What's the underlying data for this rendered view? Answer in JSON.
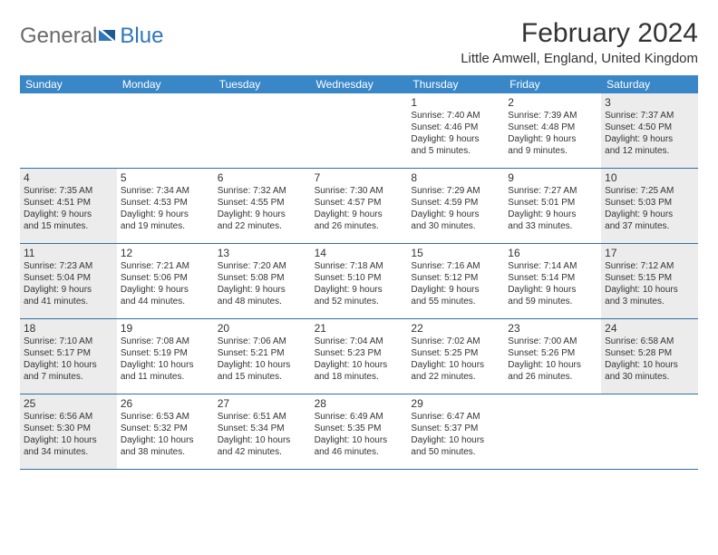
{
  "logo": {
    "part1": "General",
    "part2": "Blue"
  },
  "title": "February 2024",
  "location": "Little Amwell, England, United Kingdom",
  "colors": {
    "header_bg": "#3a87c8",
    "header_text": "#ffffff",
    "border": "#2f6fa8",
    "shaded_bg": "#ececec",
    "body_text": "#333333",
    "logo_gray": "#6a6a6a",
    "logo_blue": "#2f76ba"
  },
  "weekdays": [
    "Sunday",
    "Monday",
    "Tuesday",
    "Wednesday",
    "Thursday",
    "Friday",
    "Saturday"
  ],
  "weeks": [
    [
      null,
      null,
      null,
      null,
      {
        "n": "1",
        "sr": "Sunrise: 7:40 AM",
        "ss": "Sunset: 4:46 PM",
        "d1": "Daylight: 9 hours",
        "d2": "and 5 minutes."
      },
      {
        "n": "2",
        "sr": "Sunrise: 7:39 AM",
        "ss": "Sunset: 4:48 PM",
        "d1": "Daylight: 9 hours",
        "d2": "and 9 minutes."
      },
      {
        "n": "3",
        "sr": "Sunrise: 7:37 AM",
        "ss": "Sunset: 4:50 PM",
        "d1": "Daylight: 9 hours",
        "d2": "and 12 minutes."
      }
    ],
    [
      {
        "n": "4",
        "sr": "Sunrise: 7:35 AM",
        "ss": "Sunset: 4:51 PM",
        "d1": "Daylight: 9 hours",
        "d2": "and 15 minutes."
      },
      {
        "n": "5",
        "sr": "Sunrise: 7:34 AM",
        "ss": "Sunset: 4:53 PM",
        "d1": "Daylight: 9 hours",
        "d2": "and 19 minutes."
      },
      {
        "n": "6",
        "sr": "Sunrise: 7:32 AM",
        "ss": "Sunset: 4:55 PM",
        "d1": "Daylight: 9 hours",
        "d2": "and 22 minutes."
      },
      {
        "n": "7",
        "sr": "Sunrise: 7:30 AM",
        "ss": "Sunset: 4:57 PM",
        "d1": "Daylight: 9 hours",
        "d2": "and 26 minutes."
      },
      {
        "n": "8",
        "sr": "Sunrise: 7:29 AM",
        "ss": "Sunset: 4:59 PM",
        "d1": "Daylight: 9 hours",
        "d2": "and 30 minutes."
      },
      {
        "n": "9",
        "sr": "Sunrise: 7:27 AM",
        "ss": "Sunset: 5:01 PM",
        "d1": "Daylight: 9 hours",
        "d2": "and 33 minutes."
      },
      {
        "n": "10",
        "sr": "Sunrise: 7:25 AM",
        "ss": "Sunset: 5:03 PM",
        "d1": "Daylight: 9 hours",
        "d2": "and 37 minutes."
      }
    ],
    [
      {
        "n": "11",
        "sr": "Sunrise: 7:23 AM",
        "ss": "Sunset: 5:04 PM",
        "d1": "Daylight: 9 hours",
        "d2": "and 41 minutes."
      },
      {
        "n": "12",
        "sr": "Sunrise: 7:21 AM",
        "ss": "Sunset: 5:06 PM",
        "d1": "Daylight: 9 hours",
        "d2": "and 44 minutes."
      },
      {
        "n": "13",
        "sr": "Sunrise: 7:20 AM",
        "ss": "Sunset: 5:08 PM",
        "d1": "Daylight: 9 hours",
        "d2": "and 48 minutes."
      },
      {
        "n": "14",
        "sr": "Sunrise: 7:18 AM",
        "ss": "Sunset: 5:10 PM",
        "d1": "Daylight: 9 hours",
        "d2": "and 52 minutes."
      },
      {
        "n": "15",
        "sr": "Sunrise: 7:16 AM",
        "ss": "Sunset: 5:12 PM",
        "d1": "Daylight: 9 hours",
        "d2": "and 55 minutes."
      },
      {
        "n": "16",
        "sr": "Sunrise: 7:14 AM",
        "ss": "Sunset: 5:14 PM",
        "d1": "Daylight: 9 hours",
        "d2": "and 59 minutes."
      },
      {
        "n": "17",
        "sr": "Sunrise: 7:12 AM",
        "ss": "Sunset: 5:15 PM",
        "d1": "Daylight: 10 hours",
        "d2": "and 3 minutes."
      }
    ],
    [
      {
        "n": "18",
        "sr": "Sunrise: 7:10 AM",
        "ss": "Sunset: 5:17 PM",
        "d1": "Daylight: 10 hours",
        "d2": "and 7 minutes."
      },
      {
        "n": "19",
        "sr": "Sunrise: 7:08 AM",
        "ss": "Sunset: 5:19 PM",
        "d1": "Daylight: 10 hours",
        "d2": "and 11 minutes."
      },
      {
        "n": "20",
        "sr": "Sunrise: 7:06 AM",
        "ss": "Sunset: 5:21 PM",
        "d1": "Daylight: 10 hours",
        "d2": "and 15 minutes."
      },
      {
        "n": "21",
        "sr": "Sunrise: 7:04 AM",
        "ss": "Sunset: 5:23 PM",
        "d1": "Daylight: 10 hours",
        "d2": "and 18 minutes."
      },
      {
        "n": "22",
        "sr": "Sunrise: 7:02 AM",
        "ss": "Sunset: 5:25 PM",
        "d1": "Daylight: 10 hours",
        "d2": "and 22 minutes."
      },
      {
        "n": "23",
        "sr": "Sunrise: 7:00 AM",
        "ss": "Sunset: 5:26 PM",
        "d1": "Daylight: 10 hours",
        "d2": "and 26 minutes."
      },
      {
        "n": "24",
        "sr": "Sunrise: 6:58 AM",
        "ss": "Sunset: 5:28 PM",
        "d1": "Daylight: 10 hours",
        "d2": "and 30 minutes."
      }
    ],
    [
      {
        "n": "25",
        "sr": "Sunrise: 6:56 AM",
        "ss": "Sunset: 5:30 PM",
        "d1": "Daylight: 10 hours",
        "d2": "and 34 minutes."
      },
      {
        "n": "26",
        "sr": "Sunrise: 6:53 AM",
        "ss": "Sunset: 5:32 PM",
        "d1": "Daylight: 10 hours",
        "d2": "and 38 minutes."
      },
      {
        "n": "27",
        "sr": "Sunrise: 6:51 AM",
        "ss": "Sunset: 5:34 PM",
        "d1": "Daylight: 10 hours",
        "d2": "and 42 minutes."
      },
      {
        "n": "28",
        "sr": "Sunrise: 6:49 AM",
        "ss": "Sunset: 5:35 PM",
        "d1": "Daylight: 10 hours",
        "d2": "and 46 minutes."
      },
      {
        "n": "29",
        "sr": "Sunrise: 6:47 AM",
        "ss": "Sunset: 5:37 PM",
        "d1": "Daylight: 10 hours",
        "d2": "and 50 minutes."
      },
      null,
      null
    ]
  ]
}
